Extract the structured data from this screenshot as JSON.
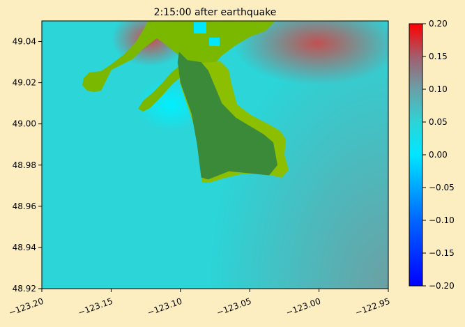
{
  "chart_data": {
    "type": "heatmap",
    "title": "2:15:00 after earthquake",
    "xlabel": "",
    "ylabel": "",
    "x_range": [
      -123.2,
      -122.95
    ],
    "y_range": [
      48.92,
      49.05
    ],
    "x_ticks": [
      -123.2,
      -123.15,
      -123.1,
      -123.05,
      -123.0,
      -122.95
    ],
    "x_tick_labels": [
      "−123.20",
      "−123.15",
      "−123.10",
      "−123.05",
      "−123.00",
      "−122.95"
    ],
    "y_ticks": [
      48.92,
      48.94,
      48.96,
      48.98,
      49.0,
      49.02,
      49.04
    ],
    "y_tick_labels": [
      "48.92",
      "48.94",
      "48.96",
      "48.98",
      "49.00",
      "49.02",
      "49.04"
    ],
    "colorbar": {
      "range": [
        -0.2,
        0.2
      ],
      "ticks": [
        0.2,
        0.15,
        0.1,
        0.05,
        0.0,
        -0.05,
        -0.1,
        -0.15,
        -0.2
      ],
      "tick_labels": [
        "0.20",
        "0.15",
        "0.10",
        "0.05",
        "0.00",
        "−0.05",
        "−0.10",
        "−0.15",
        "−0.20"
      ],
      "colors": [
        "#0000ff",
        "#0066ff",
        "#00e6ff",
        "#2bd5d8",
        "#6aa0a8",
        "#a06070",
        "#ff0000"
      ]
    },
    "land_colors": {
      "dry_land": "#7ab800",
      "island": "#3a8a3a"
    },
    "water_colors": {
      "base": "#2bd5d8",
      "east_deep": "#6f9da0",
      "north_high": "#c05050",
      "west_low": "#00e8ff"
    },
    "island_outline": [
      [
        -123.101,
        49.035
      ],
      [
        -123.095,
        49.031
      ],
      [
        -123.085,
        49.03
      ],
      [
        -123.08,
        49.026
      ],
      [
        -123.075,
        49.018
      ],
      [
        -123.07,
        49.01
      ],
      [
        -123.06,
        49.003
      ],
      [
        -123.05,
        48.999
      ],
      [
        -123.04,
        48.995
      ],
      [
        -123.033,
        48.991
      ],
      [
        -123.03,
        48.98
      ],
      [
        -123.036,
        48.975
      ],
      [
        -123.05,
        48.976
      ],
      [
        -123.065,
        48.977
      ],
      [
        -123.08,
        48.973
      ],
      [
        -123.085,
        48.974
      ],
      [
        -123.088,
        48.99
      ],
      [
        -123.092,
        49.005
      ],
      [
        -123.1,
        49.02
      ],
      [
        -123.102,
        49.03
      ]
    ]
  }
}
